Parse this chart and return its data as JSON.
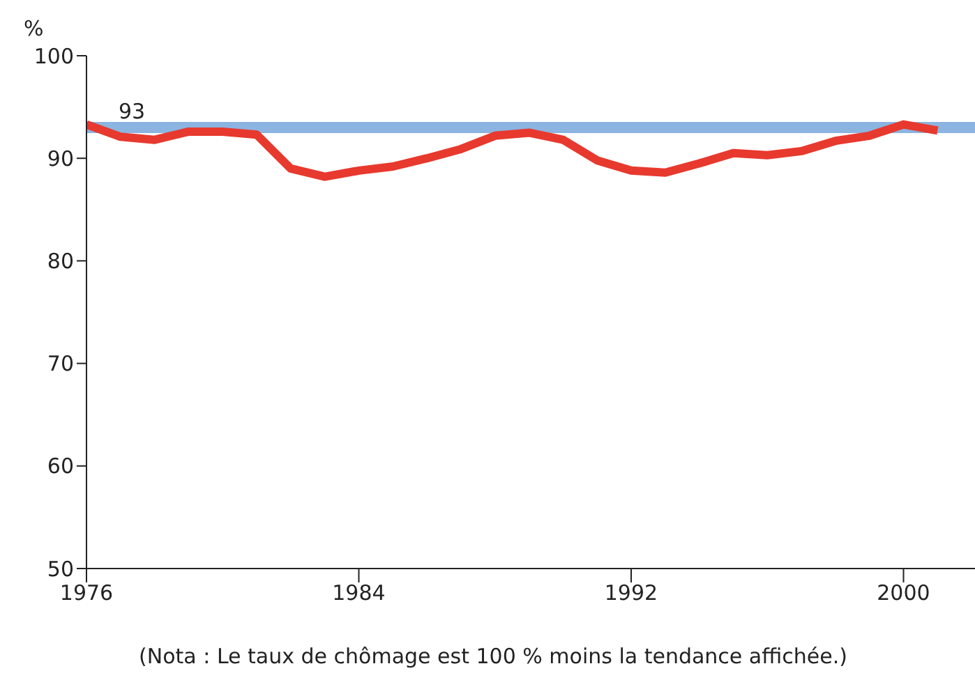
{
  "chart_data": {
    "type": "line",
    "ylabel": "%",
    "x": [
      1976,
      1977,
      1978,
      1979,
      1980,
      1981,
      1982,
      1983,
      1984,
      1985,
      1986,
      1987,
      1988,
      1989,
      1990,
      1991,
      1992,
      1993,
      1994,
      1995,
      1996,
      1997,
      1998,
      1999,
      2000,
      2001
    ],
    "series": [
      {
        "color": "#e8392e",
        "values": [
          93.3,
          92.1,
          91.8,
          92.6,
          92.6,
          92.3,
          89.0,
          88.2,
          88.8,
          89.2,
          90.0,
          90.9,
          92.2,
          92.5,
          91.8,
          89.8,
          88.8,
          88.6,
          89.5,
          90.5,
          90.3,
          90.7,
          91.7,
          92.2,
          93.3,
          92.7
        ]
      }
    ],
    "ref_lines": [
      {
        "axis": "y",
        "value": 93,
        "label": "93",
        "color": "#8cb4e0"
      }
    ],
    "xlim": [
      1976,
      2002.1
    ],
    "xticks": [
      1976,
      1984,
      1992,
      2000
    ],
    "ylim": [
      50,
      100
    ],
    "yticks": [
      50,
      60,
      70,
      80,
      90,
      100
    ],
    "grid": false,
    "legend": false,
    "marker": "none",
    "line_style": "solid",
    "annotations": [
      "(Nota : Le taux de chômage est 100 % moins la tendance affichée.)"
    ]
  }
}
